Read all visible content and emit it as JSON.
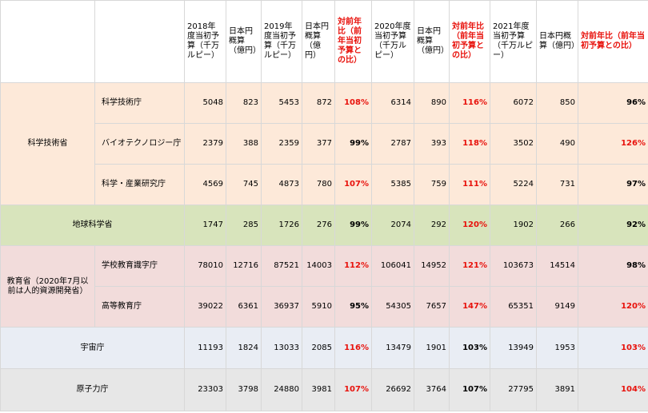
{
  "headers": [
    "2018年度当初予算（千万ルピー）",
    "日本円概算（億円）",
    "2019年度当初予算（千万ルピー）",
    "日本円概算（億円）",
    "対前年比（前年当初予算との比）",
    "2020年度当初予算（千万ルピー）",
    "日本円概算（億円）",
    "対前年比（前年当初予算との比）",
    "2021年度当初予算（千万ルピー）",
    "日本円概算（億円）",
    "対前年比（前年当初予算との比）"
  ],
  "colors": {
    "red_text": "#e8120c",
    "sci_bg": "#fde9d9",
    "earth_bg": "#d8e4bc",
    "edu_bg": "#f2dcdb",
    "space_bg": "#e9edf4",
    "atom_bg": "#e7e7e7"
  },
  "groups": {
    "science": {
      "ministry": "科学技術省",
      "rows": [
        {
          "agency": "科学技術庁",
          "v": [
            "5048",
            "823",
            "5453",
            "872",
            "108%",
            "6314",
            "890",
            "116%",
            "6072",
            "850",
            "96%"
          ]
        },
        {
          "agency": "バイオテクノロジー庁",
          "v": [
            "2379",
            "388",
            "2359",
            "377",
            "99%",
            "2787",
            "393",
            "118%",
            "3502",
            "490",
            "126%"
          ]
        },
        {
          "agency": "科学・産業研究庁",
          "v": [
            "4569",
            "745",
            "4873",
            "780",
            "107%",
            "5385",
            "759",
            "111%",
            "5224",
            "731",
            "97%"
          ]
        }
      ]
    },
    "earth": {
      "ministry": "地球科学省",
      "v": [
        "1747",
        "285",
        "1726",
        "276",
        "99%",
        "2074",
        "292",
        "120%",
        "1902",
        "266",
        "92%"
      ]
    },
    "education": {
      "ministry": "教育省（2020年7月以前は人的資源開発省）",
      "rows": [
        {
          "agency": "学校教育識字庁",
          "v": [
            "78010",
            "12716",
            "87521",
            "14003",
            "112%",
            "106041",
            "14952",
            "121%",
            "103673",
            "14514",
            "98%"
          ]
        },
        {
          "agency": "高等教育庁",
          "v": [
            "39022",
            "6361",
            "36937",
            "5910",
            "95%",
            "54305",
            "7657",
            "147%",
            "65351",
            "9149",
            "120%"
          ]
        }
      ]
    },
    "space": {
      "ministry": "宇宙庁",
      "v": [
        "11193",
        "1824",
        "13033",
        "2085",
        "116%",
        "13479",
        "1901",
        "103%",
        "13949",
        "1953",
        "103%"
      ]
    },
    "atomic": {
      "ministry": "原子力庁",
      "v": [
        "23303",
        "3798",
        "24880",
        "3981",
        "107%",
        "26692",
        "3764",
        "107%",
        "27795",
        "3891",
        "104%"
      ]
    }
  }
}
